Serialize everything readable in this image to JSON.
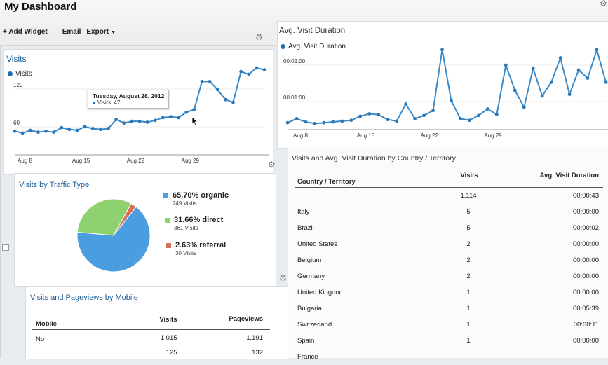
{
  "dashboard": {
    "title": "My Dashboard"
  },
  "toolbar": {
    "add_widget": "+ Add Widget",
    "email": "Email",
    "export": "Export"
  },
  "visits_widget": {
    "title": "Visits",
    "legend": "Visits",
    "tooltip": {
      "date": "Tuesday, August 28, 2012",
      "value": "Visits: 47"
    },
    "chart_data": {
      "type": "line",
      "series": [
        {
          "name": "Visits",
          "values": [
            23,
            21,
            24,
            22,
            23,
            22,
            27,
            25,
            24,
            28,
            26,
            25,
            26,
            36,
            32,
            34,
            34,
            33,
            35,
            38,
            39,
            38,
            44,
            47,
            78,
            78,
            69,
            58,
            55,
            89,
            86,
            93,
            91
          ]
        }
      ],
      "x_tick_labels": [
        "Aug 8",
        "Aug 15",
        "Aug 22",
        "Aug 29"
      ],
      "y_tick_labels": [
        "60",
        "120"
      ],
      "ylim": [
        0,
        140
      ]
    }
  },
  "duration_widget": {
    "title": "Avg. Visit Duration",
    "legend": "Avg. Visit Duration",
    "chart_data": {
      "type": "line",
      "series": [
        {
          "name": "Avg. Visit Duration",
          "values": [
            5,
            10,
            6,
            4,
            5,
            6,
            7,
            8,
            13,
            16,
            15,
            9,
            7,
            28,
            10,
            14,
            20,
            95,
            32,
            10,
            8,
            14,
            22,
            15,
            76,
            45,
            24,
            72,
            38,
            55,
            85,
            40,
            70,
            60,
            95,
            55
          ]
        }
      ],
      "x_tick_labels": [
        "Aug 8",
        "Aug 15",
        "Aug 22",
        "Aug 29"
      ],
      "y_tick_labels": [
        "00:01:00",
        "00:02:00"
      ]
    }
  },
  "traffic_widget": {
    "title": "Visits by Traffic Type",
    "chart_data": {
      "type": "pie",
      "slices": [
        {
          "label": "organic",
          "pct": 65.7,
          "visits": 749,
          "color": "#4a9ee0"
        },
        {
          "label": "direct",
          "pct": 31.66,
          "visits": 361,
          "color": "#8ed16f"
        },
        {
          "label": "referral",
          "pct": 2.63,
          "visits": 30,
          "color": "#d6715a"
        }
      ]
    },
    "legend": [
      {
        "pct": "65.70% organic",
        "sub": "749 Visits"
      },
      {
        "pct": "31.66% direct",
        "sub": "361 Visits"
      },
      {
        "pct": "2.63% referral",
        "sub": "30 Visits"
      }
    ]
  },
  "mobile_widget": {
    "title": "Visits and Pageviews by Mobile",
    "headers": [
      "Mobile",
      "Visits",
      "Pageviews"
    ],
    "rows": [
      [
        "No",
        "1,015",
        "1,191"
      ],
      [
        "",
        "125",
        "132"
      ]
    ]
  },
  "country_widget": {
    "title": "Visits and Avg. Visit Duration by Country / Territory",
    "headers": [
      "Country / Territory",
      "Visits",
      "Avg. Visit Duration"
    ],
    "rows": [
      [
        "",
        "1,114",
        "00:00:43"
      ],
      [
        "Italy",
        "5",
        "00:00:00"
      ],
      [
        "Brazil",
        "5",
        "00:00:02"
      ],
      [
        "United States",
        "2",
        "00:00:00"
      ],
      [
        "Belgium",
        "2",
        "00:00:00"
      ],
      [
        "Germany",
        "2",
        "00:00:00"
      ],
      [
        "United Kingdom",
        "1",
        "00:00:00"
      ],
      [
        "Bulgaria",
        "1",
        "00:05:39"
      ],
      [
        "Switzerland",
        "1",
        "00:00:11"
      ],
      [
        "Spain",
        "1",
        "00:00:00"
      ],
      [
        "France",
        "",
        ""
      ]
    ]
  }
}
